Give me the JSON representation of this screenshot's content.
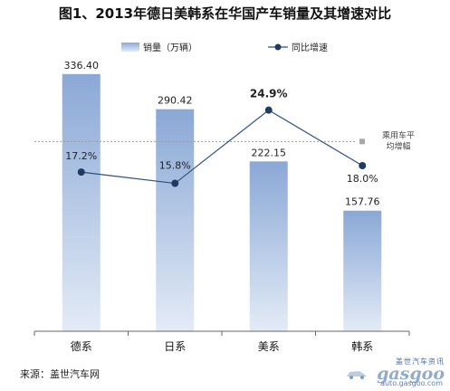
{
  "title": "图1、2013年德日美韩系在华国产车销量及其增速对比",
  "source": "来源：盖世汽车网",
  "watermark": {
    "top": "盖世汽车资讯",
    "logo": "gasgoo",
    "url": "auto.gasgoo.com"
  },
  "colors": {
    "bar_top": "#8aa8d6",
    "bar_bottom": "#e3ebf6",
    "line": "#2f4f7f",
    "dot": "#1f3a63",
    "ref_line": "#999999",
    "ref_marker": "#a8a8a8"
  },
  "chart_data": {
    "type": "bar",
    "categories": [
      "德系",
      "日系",
      "美系",
      "韩系"
    ],
    "series": [
      {
        "name": "销量（万辆）",
        "type": "bar",
        "values": [
          336.4,
          290.42,
          222.15,
          157.76
        ],
        "labels": [
          "336.40",
          "290.42",
          "222.15",
          "157.76"
        ]
      },
      {
        "name": "同比增速",
        "type": "line",
        "values": [
          17.2,
          15.8,
          24.9,
          18.0
        ],
        "labels": [
          "17.2%",
          "15.8%",
          "24.9%",
          "18.0%"
        ]
      }
    ],
    "reference_line": {
      "label_line1": "乘用车平",
      "label_line2": "均增幅"
    },
    "bar_axis_range": [
      0,
      380
    ],
    "growth_axis_range": [
      9,
      27
    ],
    "reference_value": 21.0,
    "legend_position": "top"
  }
}
